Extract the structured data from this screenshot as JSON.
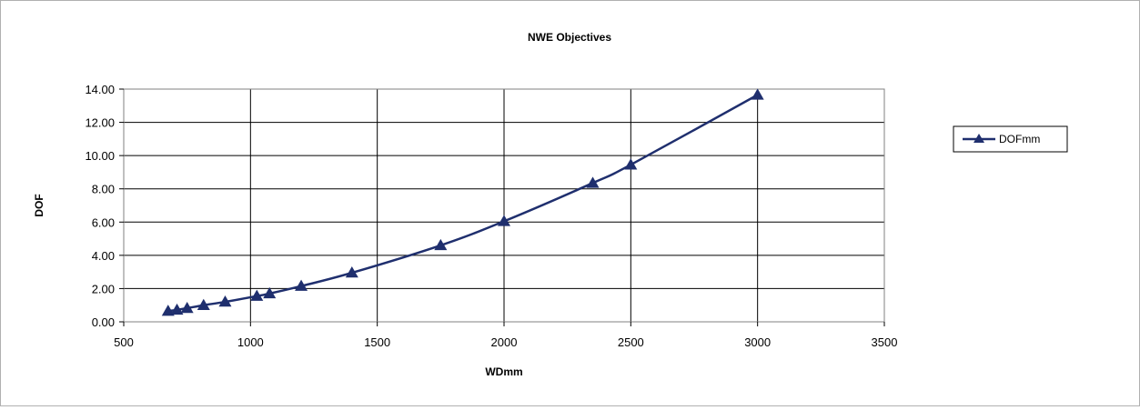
{
  "chart_data": {
    "type": "line",
    "title": "NWE Objectives",
    "xlabel": "WDmm",
    "ylabel": "DOF",
    "xlim": [
      500,
      3500
    ],
    "ylim": [
      0,
      14
    ],
    "x_ticks": [
      "500",
      "1000",
      "1500",
      "2000",
      "2500",
      "3000",
      "3500"
    ],
    "y_ticks": [
      "0.00",
      "2.00",
      "4.00",
      "6.00",
      "8.00",
      "10.00",
      "12.00",
      "14.00"
    ],
    "grid": "major gridlines on both axes",
    "legend_position": "right",
    "marker": "triangle",
    "color": "#1f2f6e",
    "series": [
      {
        "name": "DOFmm",
        "x": [
          675,
          710,
          750,
          815,
          900,
          1025,
          1075,
          1200,
          1400,
          1750,
          2000,
          2350,
          2500,
          3000
        ],
        "y": [
          0.65,
          0.72,
          0.82,
          1.0,
          1.2,
          1.55,
          1.7,
          2.15,
          2.95,
          4.6,
          6.05,
          8.35,
          9.45,
          13.65
        ]
      }
    ]
  }
}
